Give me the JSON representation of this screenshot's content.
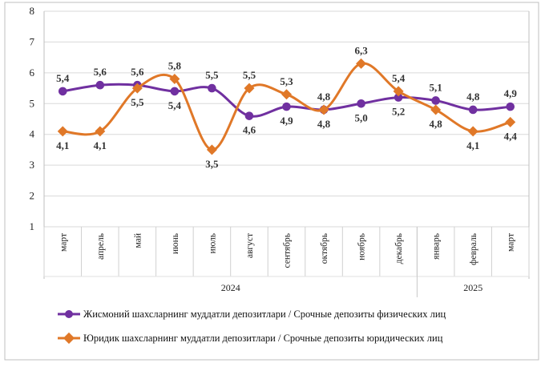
{
  "chart_data": {
    "type": "line",
    "categories": [
      "март",
      "апрель",
      "май",
      "июнь",
      "июль",
      "август",
      "сентябрь",
      "октябрь",
      "ноябрь",
      "декабрь",
      "январь",
      "февраль",
      "март"
    ],
    "year_groups": [
      {
        "label": "2024",
        "start": 0,
        "end": 9
      },
      {
        "label": "2025",
        "start": 10,
        "end": 12
      }
    ],
    "ylim": [
      1,
      8
    ],
    "yticks": [
      "1",
      "2",
      "3",
      "4",
      "5",
      "6",
      "7",
      "8"
    ],
    "grid": "horizontal",
    "legend_position": "bottom",
    "series": [
      {
        "name": "Жисмоний шахсларнинг  муддатли  депозитлари / Срочные депозиты  физических  лиц",
        "color": "#7030A0",
        "marker": "circle",
        "values": [
          5.4,
          5.6,
          5.6,
          5.4,
          5.5,
          4.6,
          4.9,
          4.8,
          5.0,
          5.2,
          5.1,
          4.8,
          4.9
        ],
        "labels": [
          "5,4",
          "5,6",
          "5,6",
          "5,4",
          "5,5",
          "4,6",
          "4,9",
          "4,8",
          "5,0",
          "5,2",
          "5,1",
          "4,8",
          "4,9"
        ]
      },
      {
        "name": "Юридик  шахсларнинг  муддатли  депозитлари / Срочные депозиты  юридических  лиц",
        "color": "#E07828",
        "marker": "diamond",
        "values": [
          4.1,
          4.1,
          5.5,
          5.8,
          3.5,
          5.5,
          5.3,
          4.8,
          6.3,
          5.4,
          4.8,
          4.1,
          4.4
        ],
        "labels": [
          "4,1",
          "4,1",
          "5,5",
          "5,8",
          "3,5",
          "5,5",
          "5,3",
          "4,8",
          "6,3",
          "5,4",
          "4,8",
          "4,1",
          "4,4"
        ]
      }
    ]
  }
}
